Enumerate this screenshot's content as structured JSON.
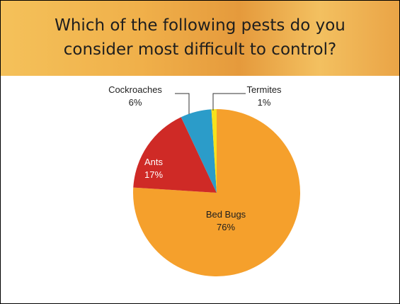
{
  "chart_data": {
    "type": "pie",
    "title": "Which of the following pests do you consider most difficult to control?",
    "categories": [
      "Bed Bugs",
      "Ants",
      "Cockroaches",
      "Termites"
    ],
    "values": [
      76,
      17,
      6,
      1
    ],
    "value_labels": [
      "76%",
      "17%",
      "6%",
      "1%"
    ],
    "colors": [
      "#f5a02c",
      "#cf2a26",
      "#2b9cc9",
      "#f6e21c"
    ]
  }
}
